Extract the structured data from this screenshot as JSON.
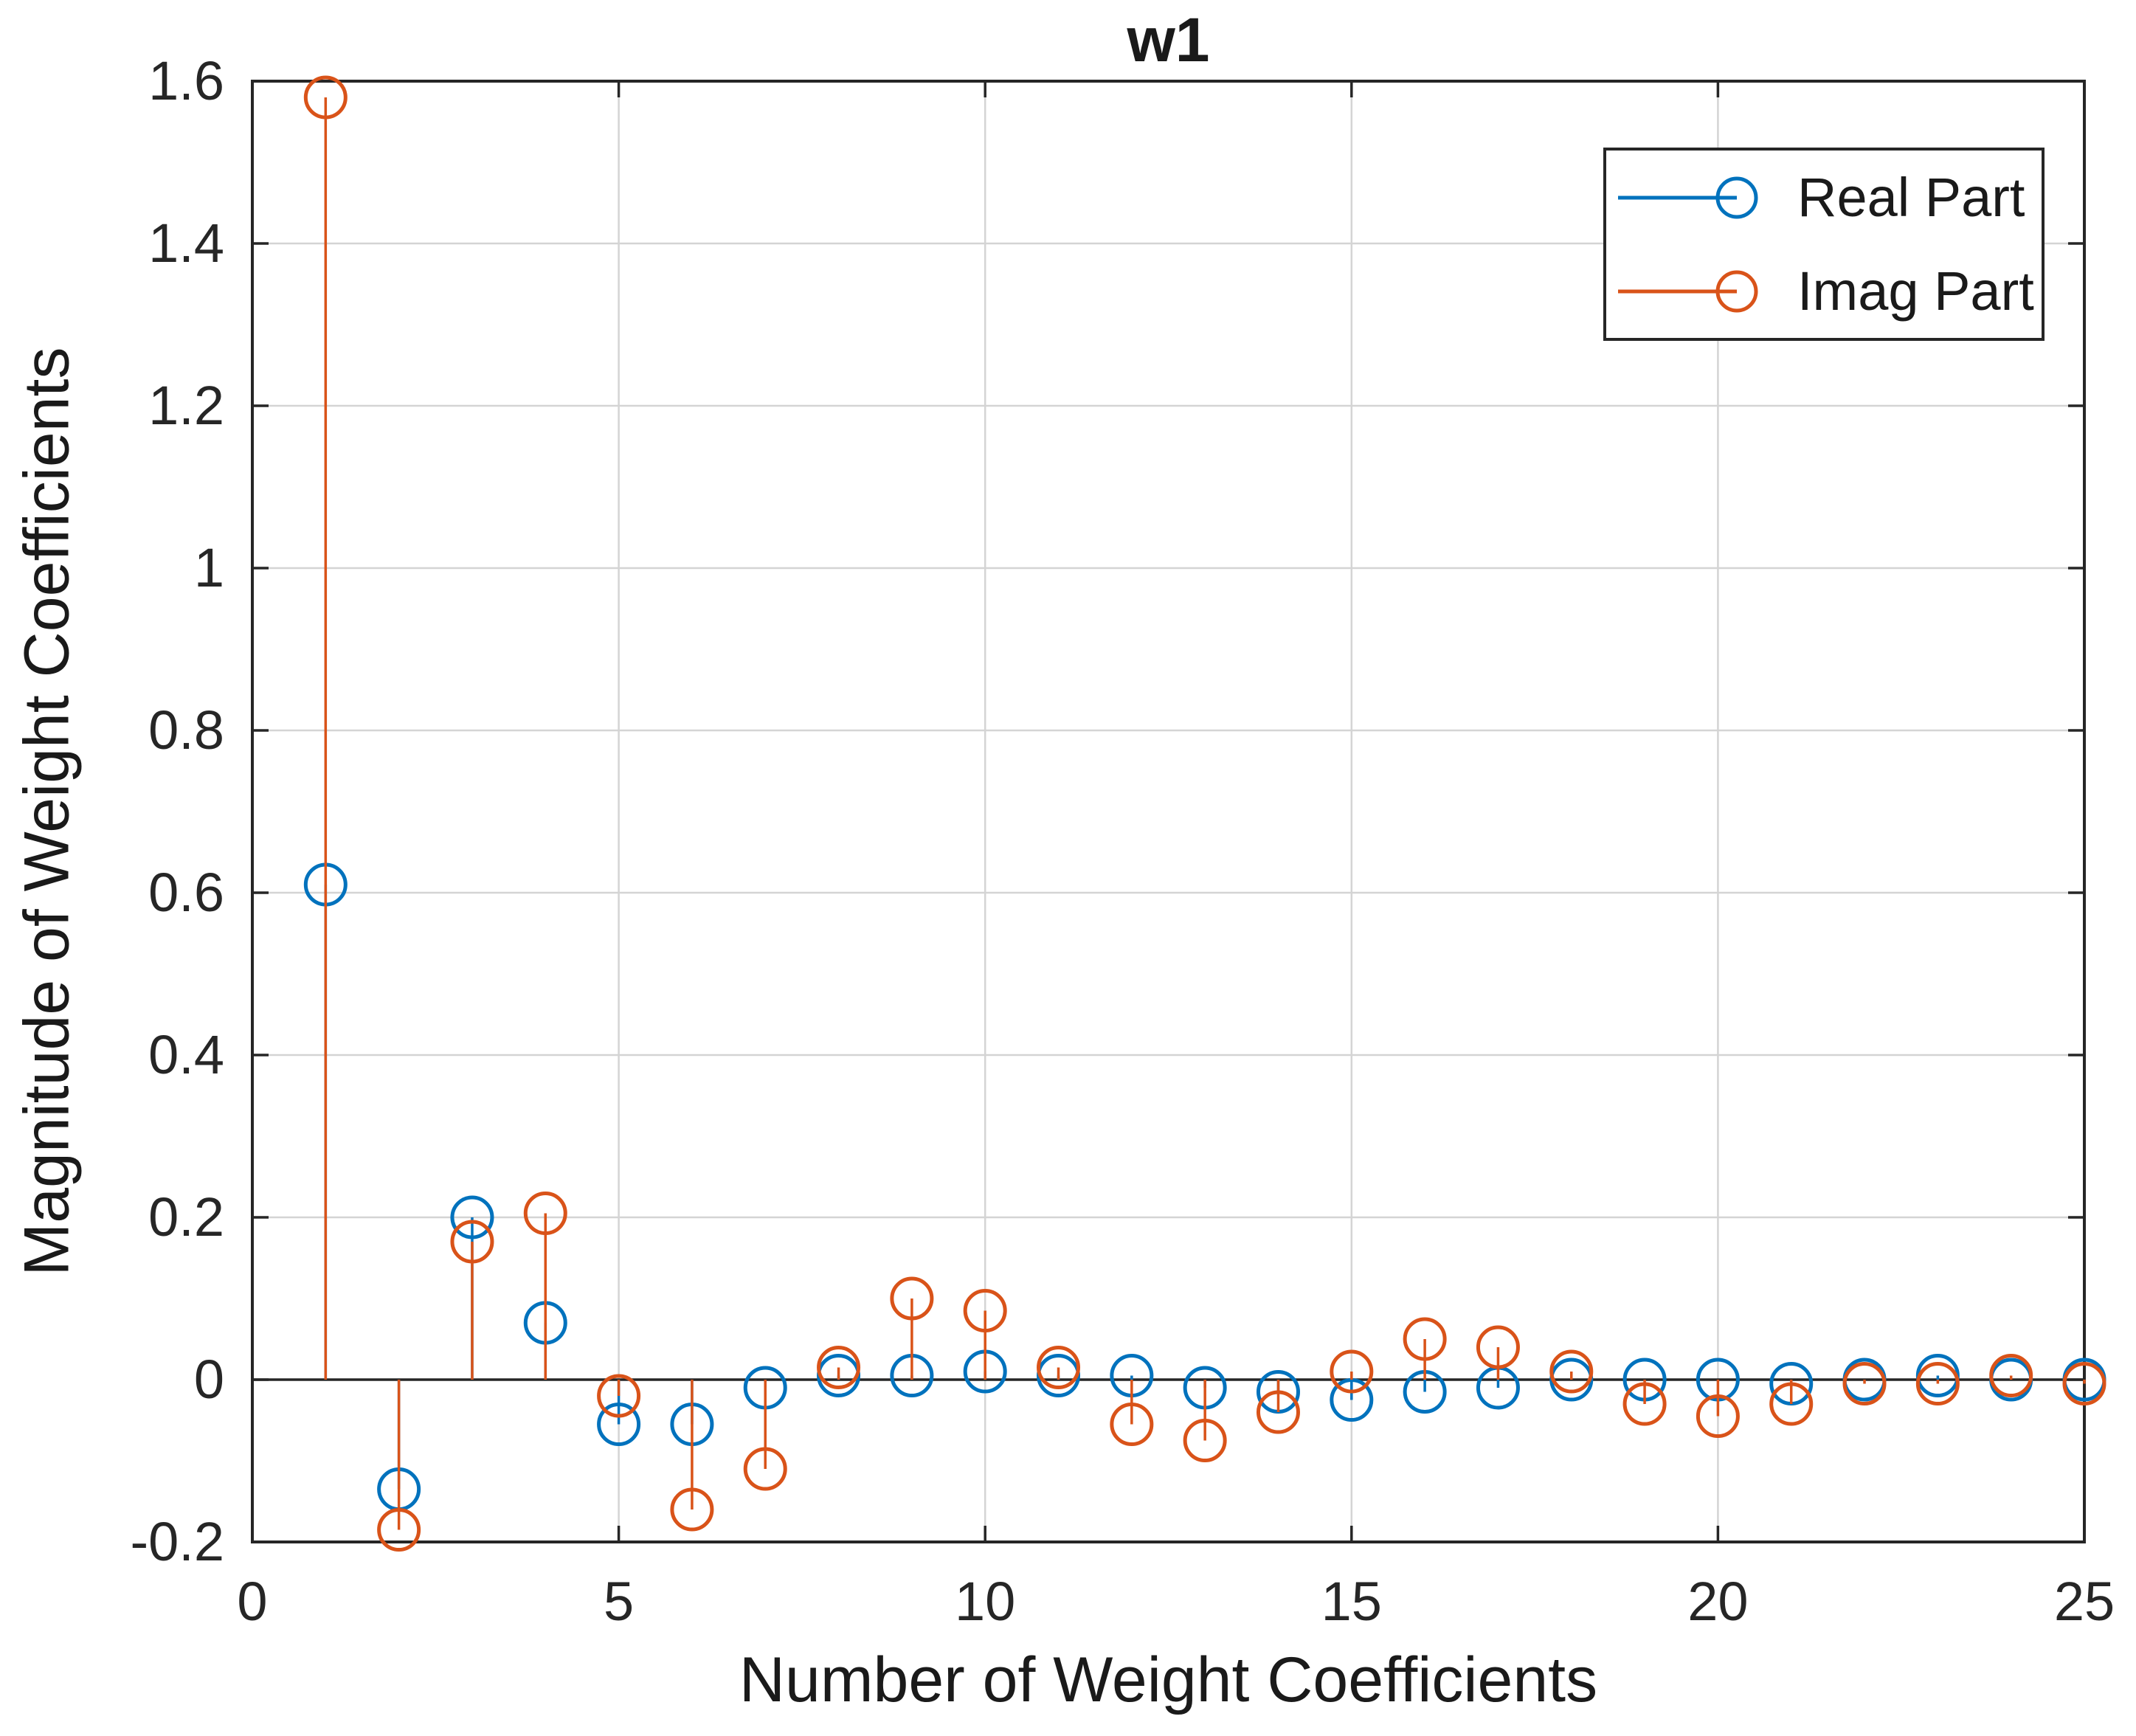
{
  "chart_data": {
    "type": "stem",
    "title": "w1",
    "xlabel": "Number of Weight Coefficients",
    "ylabel": "Magnitude of Weight Coefficients",
    "xlim": [
      0,
      25
    ],
    "ylim": [
      -0.2,
      1.6
    ],
    "xticks": [
      0,
      5,
      10,
      15,
      20,
      25
    ],
    "xtick_labels": [
      "0",
      "5",
      "10",
      "15",
      "20",
      "25"
    ],
    "yticks": [
      -0.2,
      0,
      0.2,
      0.4,
      0.6,
      0.8,
      1,
      1.2,
      1.4,
      1.6
    ],
    "ytick_labels": [
      "-0.2",
      "0",
      "0.2",
      "0.4",
      "0.6",
      "0.8",
      "1",
      "1.2",
      "1.4",
      "1.6"
    ],
    "grid": true,
    "baseline": 0,
    "legend_position": "northeast",
    "x": [
      1,
      2,
      3,
      4,
      5,
      6,
      7,
      8,
      9,
      10,
      11,
      12,
      13,
      14,
      15,
      16,
      17,
      18,
      19,
      20,
      21,
      22,
      23,
      24,
      25
    ],
    "series": [
      {
        "name": "Real Part",
        "color": "#0072BD",
        "values": [
          0.61,
          -0.135,
          0.2,
          0.07,
          -0.055,
          -0.055,
          -0.01,
          0.005,
          0.005,
          0.01,
          0.005,
          0.005,
          -0.01,
          -0.015,
          -0.025,
          -0.015,
          -0.01,
          0.0,
          0.0,
          0.0,
          -0.005,
          0.0,
          0.005,
          0.0,
          0.0
        ]
      },
      {
        "name": "Imag Part",
        "color": "#D95319",
        "values": [
          1.58,
          -0.185,
          0.17,
          0.205,
          -0.02,
          -0.16,
          -0.11,
          0.015,
          0.1,
          0.085,
          0.015,
          -0.055,
          -0.075,
          -0.04,
          0.01,
          0.05,
          0.04,
          0.01,
          -0.03,
          -0.045,
          -0.03,
          -0.005,
          -0.005,
          0.005,
          -0.005
        ]
      }
    ],
    "colors": {
      "axis": "#262626",
      "grid": "#d4d4d4",
      "background": "#ffffff"
    }
  }
}
